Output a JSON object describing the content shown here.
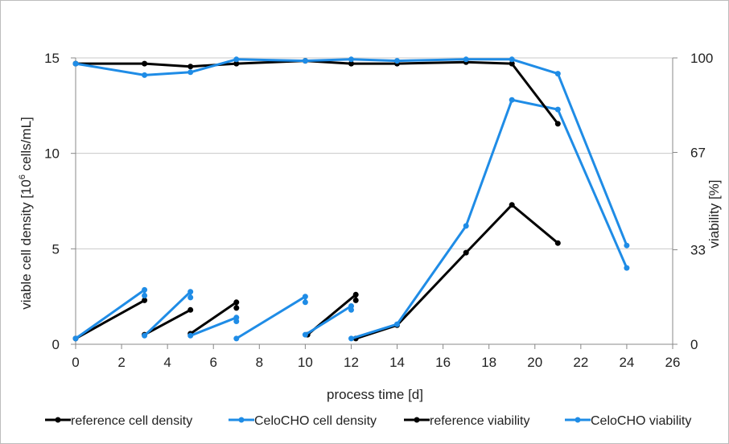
{
  "chart_data": {
    "type": "line",
    "xlabel": "process time [d]",
    "ylabel": {
      "main": "viable cell density [10",
      "sup": "6",
      "rest": " cells/mL]"
    },
    "y2label": "viability [%]",
    "xlim": [
      0,
      26
    ],
    "ylim": [
      0,
      15
    ],
    "y2lim": [
      0,
      100
    ],
    "x_ticks": [
      "0",
      "2",
      "4",
      "6",
      "8",
      "10",
      "12",
      "14",
      "16",
      "18",
      "20",
      "22",
      "24",
      "26"
    ],
    "y_ticks": [
      "0",
      "5",
      "10",
      "15"
    ],
    "y2_ticks": [
      "0",
      "33",
      "67",
      "100"
    ],
    "grid": "horizontal",
    "legend_position": "bottom",
    "colors": {
      "reference": "#000000",
      "celocho": "#1f8ce6",
      "grid": "#c8c8c8",
      "axis": "#888888"
    },
    "series": [
      {
        "name": "reference cell density",
        "axis": "left",
        "color": "#000000",
        "segments": [
          [
            [
              0,
              0.3
            ],
            [
              3.0,
              2.3
            ]
          ],
          [
            [
              3.0,
              0.5
            ],
            [
              5.0,
              1.8
            ]
          ],
          [
            [
              5.0,
              0.55
            ],
            [
              7.0,
              2.2
            ],
            [
              7.0,
              1.9
            ]
          ],
          [
            [
              10.1,
              0.5
            ],
            [
              12.2,
              2.6
            ],
            [
              12.2,
              2.3
            ]
          ],
          [
            [
              12.2,
              0.3
            ],
            [
              14.0,
              1.0
            ],
            [
              17.0,
              4.8
            ],
            [
              19.0,
              7.3
            ],
            [
              21.0,
              5.3
            ]
          ]
        ]
      },
      {
        "name": "CeloCHO cell density",
        "axis": "left",
        "color": "#1f8ce6",
        "segments": [
          [
            [
              0,
              0.3
            ],
            [
              3.0,
              2.85
            ],
            [
              3.0,
              2.55
            ]
          ],
          [
            [
              3.0,
              0.45
            ],
            [
              5.0,
              2.75
            ],
            [
              5.0,
              2.45
            ]
          ],
          [
            [
              5.0,
              0.45
            ],
            [
              7.0,
              1.4
            ],
            [
              7.0,
              1.2
            ]
          ],
          [
            [
              7.0,
              0.3
            ],
            [
              10.0,
              2.5
            ],
            [
              10.0,
              2.2
            ]
          ],
          [
            [
              10.0,
              0.5
            ],
            [
              12.0,
              2.0
            ],
            [
              12.0,
              1.8
            ]
          ],
          [
            [
              12.0,
              0.3
            ],
            [
              14.0,
              1.05
            ],
            [
              17.0,
              6.2
            ],
            [
              19.0,
              12.8
            ],
            [
              21.0,
              12.3
            ],
            [
              24.0,
              4.0
            ]
          ]
        ]
      },
      {
        "name": "reference viability",
        "axis": "right",
        "color": "#000000",
        "segments": [
          [
            [
              0,
              98
            ],
            [
              3.0,
              98
            ],
            [
              5.0,
              97
            ],
            [
              7.0,
              98
            ],
            [
              10.0,
              99
            ],
            [
              12.0,
              98
            ],
            [
              14.0,
              98
            ],
            [
              17.0,
              98.5
            ],
            [
              19.0,
              98
            ],
            [
              21.0,
              77
            ]
          ]
        ]
      },
      {
        "name": "CeloCHO viability",
        "axis": "right",
        "color": "#1f8ce6",
        "segments": [
          [
            [
              0,
              98
            ],
            [
              3.0,
              94
            ],
            [
              5.0,
              95
            ],
            [
              7.0,
              99.5
            ],
            [
              10.0,
              99
            ],
            [
              12.0,
              99.5
            ],
            [
              14.0,
              99
            ],
            [
              17.0,
              99.5
            ],
            [
              19.0,
              99.5
            ],
            [
              21.0,
              94.5
            ],
            [
              24.0,
              34.5
            ]
          ]
        ]
      }
    ],
    "legend": [
      {
        "label": "reference cell density",
        "color": "#000000"
      },
      {
        "label": "CeloCHO cell density",
        "color": "#1f8ce6"
      },
      {
        "label": "reference viability",
        "color": "#000000"
      },
      {
        "label": "CeloCHO viability",
        "color": "#1f8ce6"
      }
    ]
  }
}
